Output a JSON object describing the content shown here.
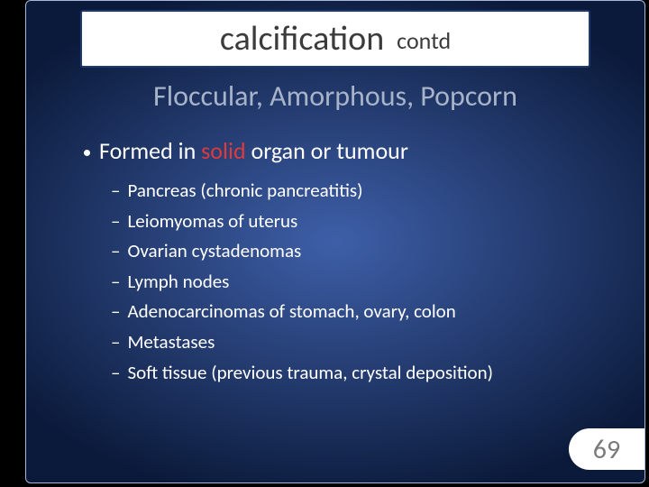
{
  "colors": {
    "page_bg": "#000000",
    "slide_border": "#a6b8d8",
    "title_box_bg": "#ffffff",
    "title_box_border": "#1f3a6e",
    "title_text": "#3b3b3b",
    "subtitle_text": "#a7b3c9",
    "body_text": "#ffffff",
    "accent_text": "#e03a3a",
    "pagetag_bg": "#ffffff",
    "pagetag_text": "#7a7a7a",
    "gradient_inner": "#3e5fa8",
    "gradient_outer": "#0b1a3a"
  },
  "title": {
    "main": "calcification",
    "sub": "contd"
  },
  "subtitle": "Floccular, Amorphous, Popcorn",
  "lead": {
    "pre": "Formed in ",
    "accent": "solid",
    "post": " organ or tumour"
  },
  "items": [
    "Pancreas (chronic pancreatitis)",
    "Leiomyomas of uterus",
    "Ovarian cystadenomas",
    "Lymph nodes",
    "Adenocarcinomas of stomach, ovary, colon",
    "Metastases",
    "Soft tissue (previous trauma, crystal deposition)"
  ],
  "page_number": "69",
  "typography": {
    "title_main_pt": 38,
    "title_sub_pt": 26,
    "subtitle_pt": 32,
    "lead_pt": 26,
    "subitem_pt": 21,
    "pagetag_pt": 30
  }
}
